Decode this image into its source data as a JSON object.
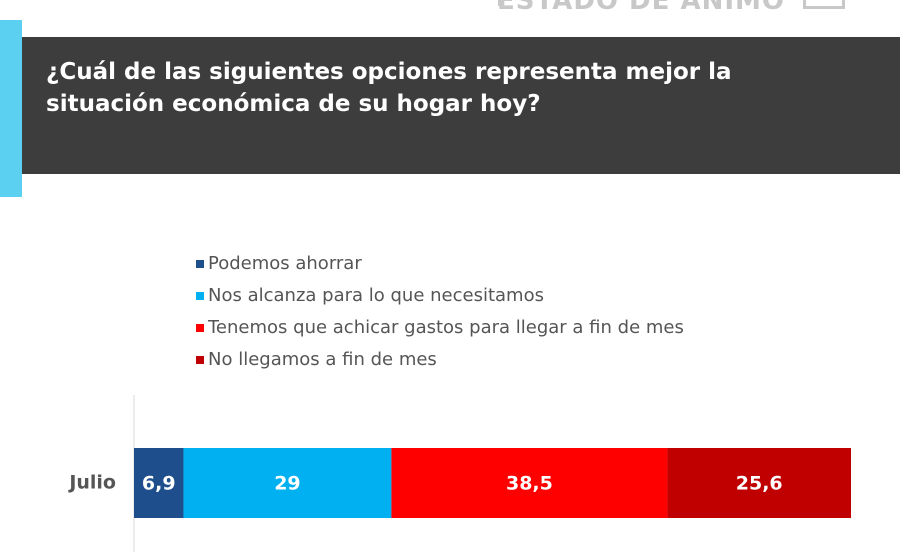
{
  "chart_data": {
    "type": "stacked-bar",
    "section": "ESTADO DE ÁNIMO",
    "title": "¿Cuál de las siguientes opciones representa mejor la situación económica de su hogar hoy?",
    "categories": [
      "Julio"
    ],
    "series": [
      {
        "name": "Podemos ahorrar",
        "color": "#1f4e8c",
        "values": [
          6.9
        ],
        "value_labels": [
          "6,9"
        ]
      },
      {
        "name": "Nos alcanza para lo que necesitamos",
        "color": "#00b0f0",
        "values": [
          29
        ]
      },
      {
        "name": "Tenemos que achicar gastos para llegar a fin de mes",
        "color": "#ff0000",
        "values": [
          38.5
        ],
        "value_labels": [
          "38,5"
        ]
      },
      {
        "name": "No llegamos a fin de mes",
        "color": "#c00000",
        "values": [
          25.6
        ],
        "value_labels": [
          "25,6"
        ]
      }
    ]
  }
}
